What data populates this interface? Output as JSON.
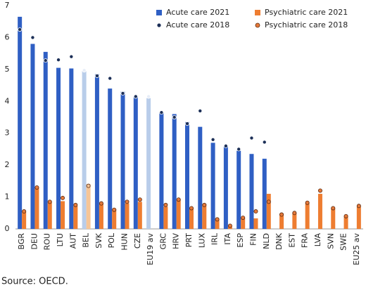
{
  "chart_data": {
    "type": "bar",
    "categories": [
      "BGR",
      "DEU",
      "ROU",
      "LTU",
      "AUT",
      "BEL",
      "SVK",
      "POL",
      "HUN",
      "CZE",
      "EU19 av",
      "GRC",
      "HRV",
      "PRT",
      "LUX",
      "IRL",
      "ITA",
      "ESP",
      "FIN",
      "NLD",
      "DNK",
      "EST",
      "FRA",
      "LVA",
      "SVN",
      "SWE",
      "EU25 av"
    ],
    "highlight": [
      5,
      10
    ],
    "series": [
      {
        "name": "Acute care 2021",
        "mark": "bar",
        "color": "#2f5fc4",
        "highlight_color": "#b9cdea",
        "values": [
          6.65,
          5.8,
          5.55,
          5.05,
          5.03,
          4.95,
          4.85,
          4.4,
          4.3,
          4.15,
          4.1,
          3.65,
          3.6,
          3.35,
          3.2,
          2.7,
          2.6,
          2.45,
          2.35,
          2.2,
          null,
          null,
          null,
          null,
          null,
          null,
          null
        ]
      },
      {
        "name": "Psychiatric care 2021",
        "mark": "bar",
        "color": "#ee7d31",
        "highlight_color": "#f6c597",
        "values": [
          0.55,
          1.3,
          0.85,
          0.87,
          0.72,
          1.4,
          0.8,
          0.62,
          0.8,
          0.85,
          null,
          0.7,
          0.93,
          0.65,
          0.78,
          0.32,
          0.08,
          0.35,
          0.33,
          1.1,
          0.48,
          0.5,
          0.8,
          1.1,
          0.65,
          0.4,
          0.7
        ]
      },
      {
        "name": "Acute care 2018",
        "mark": "dot",
        "color": "#1c2f57",
        "highlight_color": "#e8eef8",
        "values": [
          6.25,
          6.0,
          5.28,
          5.3,
          5.4,
          4.97,
          4.8,
          4.72,
          4.25,
          4.15,
          4.15,
          3.65,
          3.5,
          3.3,
          3.7,
          2.8,
          2.6,
          2.5,
          2.85,
          2.72,
          null,
          null,
          null,
          null,
          null,
          null,
          null
        ]
      },
      {
        "name": "Psychiatric care 2018",
        "mark": "dot",
        "color": "#e5793a",
        "highlight_color": "#f6c597",
        "values": [
          0.55,
          1.3,
          0.85,
          0.97,
          0.75,
          1.35,
          0.8,
          0.6,
          0.85,
          0.92,
          null,
          0.75,
          0.92,
          0.65,
          0.75,
          0.3,
          0.1,
          0.35,
          0.55,
          0.85,
          0.45,
          0.5,
          0.82,
          1.2,
          0.65,
          0.4,
          0.72
        ]
      }
    ],
    "ylim": [
      0,
      7
    ],
    "yticks": [
      0,
      1,
      2,
      3,
      4,
      5,
      6,
      7
    ],
    "grid": false,
    "source": "Source: OECD."
  }
}
